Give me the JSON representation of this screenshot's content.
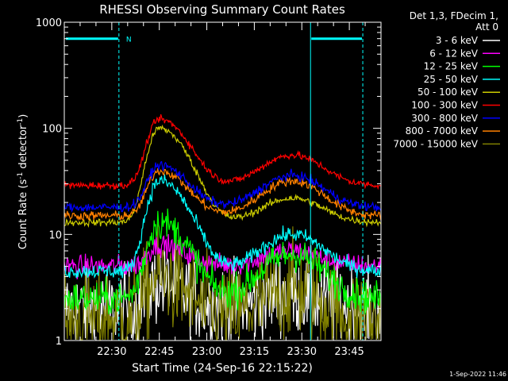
{
  "chart_data": {
    "type": "line",
    "title": "RHESSI Observing Summary Count Rates",
    "xlabel": "Start Time (24-Sep-16 22:15:22)",
    "ylabel_main": "Count Rate (s",
    "ylabel_sup1": "-1",
    "ylabel_mid": " detector",
    "ylabel_sup2": "-1",
    "ylabel_end": ")",
    "yscale": "log",
    "ylim": [
      1,
      1000
    ],
    "xlim_minutes": [
      0,
      100
    ],
    "yticks": [
      {
        "value": 1,
        "label": "1"
      },
      {
        "value": 10,
        "label": "10"
      },
      {
        "value": 100,
        "label": "100"
      },
      {
        "value": 1000,
        "label": "1000"
      }
    ],
    "xticks": [
      {
        "minute": 15,
        "label": "22:30"
      },
      {
        "minute": 30,
        "label": "22:45"
      },
      {
        "minute": 45,
        "label": "23:00"
      },
      {
        "minute": 60,
        "label": "23:15"
      },
      {
        "minute": 75,
        "label": "23:30"
      },
      {
        "minute": 90,
        "label": "23:45"
      }
    ],
    "legend_header_1": "Det 1,3, FDecim 1,",
    "legend_header_2": "Att 0",
    "night_bars": [
      {
        "start_minute": 0,
        "end_minute": 17.5,
        "label": "N"
      },
      {
        "start_minute": 77.5,
        "end_minute": 94.5,
        "label": ""
      }
    ],
    "night_line_color": "#00ffff",
    "flares_minute": [
      30,
      72
    ],
    "series": [
      {
        "name": "3 - 6 keV",
        "color": "#ffffff",
        "base": 2.0,
        "peak1": 3.5,
        "peak2": 2.8,
        "noise": 0.45
      },
      {
        "name": "6 - 12 keV",
        "color": "#ff00ff",
        "base": 5.0,
        "peak1": 8.0,
        "peak2": 7.0,
        "noise": 0.12
      },
      {
        "name": "12 - 25 keV",
        "color": "#00ff00",
        "base": 2.5,
        "peak1": 13.0,
        "peak2": 6.5,
        "noise": 0.18
      },
      {
        "name": "25 - 50 keV",
        "color": "#00ffff",
        "base": 4.5,
        "peak1": 32.0,
        "peak2": 10.0,
        "noise": 0.08
      },
      {
        "name": "50 - 100 keV",
        "color": "#cccc00",
        "base": 13.0,
        "peak1": 100.0,
        "peak2": 22.0,
        "noise": 0.04
      },
      {
        "name": "100 - 300 keV",
        "color": "#ff0000",
        "base": 29.0,
        "peak1": 122.0,
        "peak2": 56.0,
        "noise": 0.04
      },
      {
        "name": "300 - 800 keV",
        "color": "#0000ff",
        "base": 18.0,
        "peak1": 45.0,
        "peak2": 36.0,
        "noise": 0.05
      },
      {
        "name": "800 - 7000 keV",
        "color": "#ff8000",
        "base": 15.0,
        "peak1": 40.0,
        "peak2": 32.0,
        "noise": 0.05
      },
      {
        "name": "7000 - 15000 keV",
        "color": "#808000",
        "base": 1.6,
        "peak1": 4.0,
        "peak2": 3.0,
        "noise": 0.55
      }
    ],
    "footer_date": "1-Sep-2022 11:46"
  }
}
